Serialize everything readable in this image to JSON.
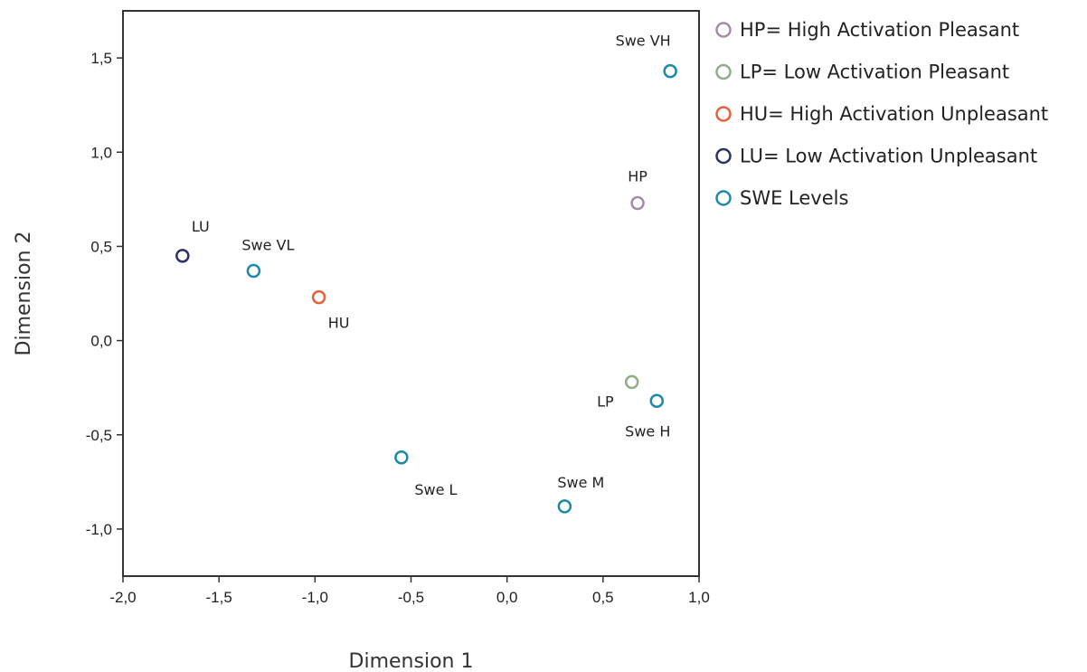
{
  "chart_data": {
    "type": "scatter",
    "xlabel": "Dimension 1",
    "ylabel": "Dimension 2",
    "xlim": [
      -2.0,
      1.0
    ],
    "ylim": [
      -1.25,
      1.75
    ],
    "x_ticks": [
      -2.0,
      -1.5,
      -1.0,
      -0.5,
      0.0,
      0.5,
      1.0
    ],
    "x_tick_labels": [
      "-2,0",
      "-1,5",
      "-1,0",
      "-0,5",
      "0,0",
      "0,5",
      "1,0"
    ],
    "y_ticks": [
      1.5,
      1.0,
      0.5,
      0.0,
      -0.5,
      -1.0
    ],
    "y_tick_labels": [
      "1,5",
      "1,0",
      "0,5",
      "0,0",
      "-0,5",
      "-1,0"
    ],
    "grid": false,
    "legend_position": "right",
    "series": [
      {
        "name": "HP= High Activation Pleasant",
        "color": "#a68aa8",
        "points": [
          {
            "x": 0.68,
            "y": 0.73,
            "label": "HP"
          }
        ]
      },
      {
        "name": "LP= Low Activation Pleasant",
        "color": "#8fae88",
        "points": [
          {
            "x": 0.65,
            "y": -0.22,
            "label": "LP"
          }
        ]
      },
      {
        "name": "HU= High Activation Unpleasant",
        "color": "#e8603a",
        "points": [
          {
            "x": -0.98,
            "y": 0.23,
            "label": "HU"
          }
        ]
      },
      {
        "name": "LU= Low Activation Unpleasant",
        "color": "#2e3266",
        "points": [
          {
            "x": -1.69,
            "y": 0.45,
            "label": "LU"
          }
        ]
      },
      {
        "name": "SWE Levels",
        "color": "#1e8aa8",
        "points": [
          {
            "x": 0.85,
            "y": 1.43,
            "label": "Swe VH"
          },
          {
            "x": 0.78,
            "y": -0.32,
            "label": "Swe H"
          },
          {
            "x": 0.3,
            "y": -0.88,
            "label": "Swe M"
          },
          {
            "x": -0.55,
            "y": -0.62,
            "label": "Swe L"
          },
          {
            "x": -1.32,
            "y": 0.37,
            "label": "Swe VL"
          }
        ]
      }
    ]
  }
}
